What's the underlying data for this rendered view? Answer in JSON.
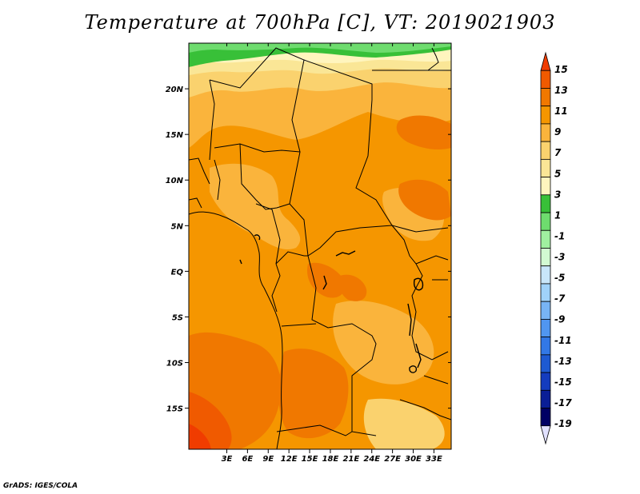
{
  "title": "Temperature at 700hPa [C], VT: 2019021903",
  "credit": "GrADS: IGES/COLA",
  "map": {
    "lon_range": [
      -2.5,
      35.5
    ],
    "lat_range": [
      -19.5,
      25.0
    ],
    "lon_ticks": [
      "3E",
      "6E",
      "9E",
      "12E",
      "15E",
      "18E",
      "21E",
      "24E",
      "27E",
      "30E",
      "33E"
    ],
    "lon_tick_values": [
      3,
      6,
      9,
      12,
      15,
      18,
      21,
      24,
      27,
      30,
      33
    ],
    "lat_ticks": [
      "20N",
      "15N",
      "10N",
      "5N",
      "EQ",
      "5S",
      "10S",
      "15S"
    ],
    "lat_tick_values": [
      20,
      15,
      10,
      5,
      0,
      -5,
      -10,
      -15
    ]
  },
  "colorbar": {
    "labels": [
      "15",
      "13",
      "11",
      "9",
      "7",
      "5",
      "3",
      "1",
      "-1",
      "-3",
      "-5",
      "-7",
      "-9",
      "-11",
      "-13",
      "-15",
      "-17",
      "-19"
    ],
    "colors": [
      "#f03c00",
      "#f05a00",
      "#f07800",
      "#f59600",
      "#fab43c",
      "#fad26e",
      "#fae696",
      "#fff5be",
      "#38c038",
      "#6edc6e",
      "#a0f0a0",
      "#d2fad2",
      "#c8e6fa",
      "#a0d2fa",
      "#78b4f5",
      "#5096f0",
      "#3278e6",
      "#1e5ad2",
      "#143cbe",
      "#0a1e96",
      "#000064",
      "#e1e1ff"
    ]
  }
}
